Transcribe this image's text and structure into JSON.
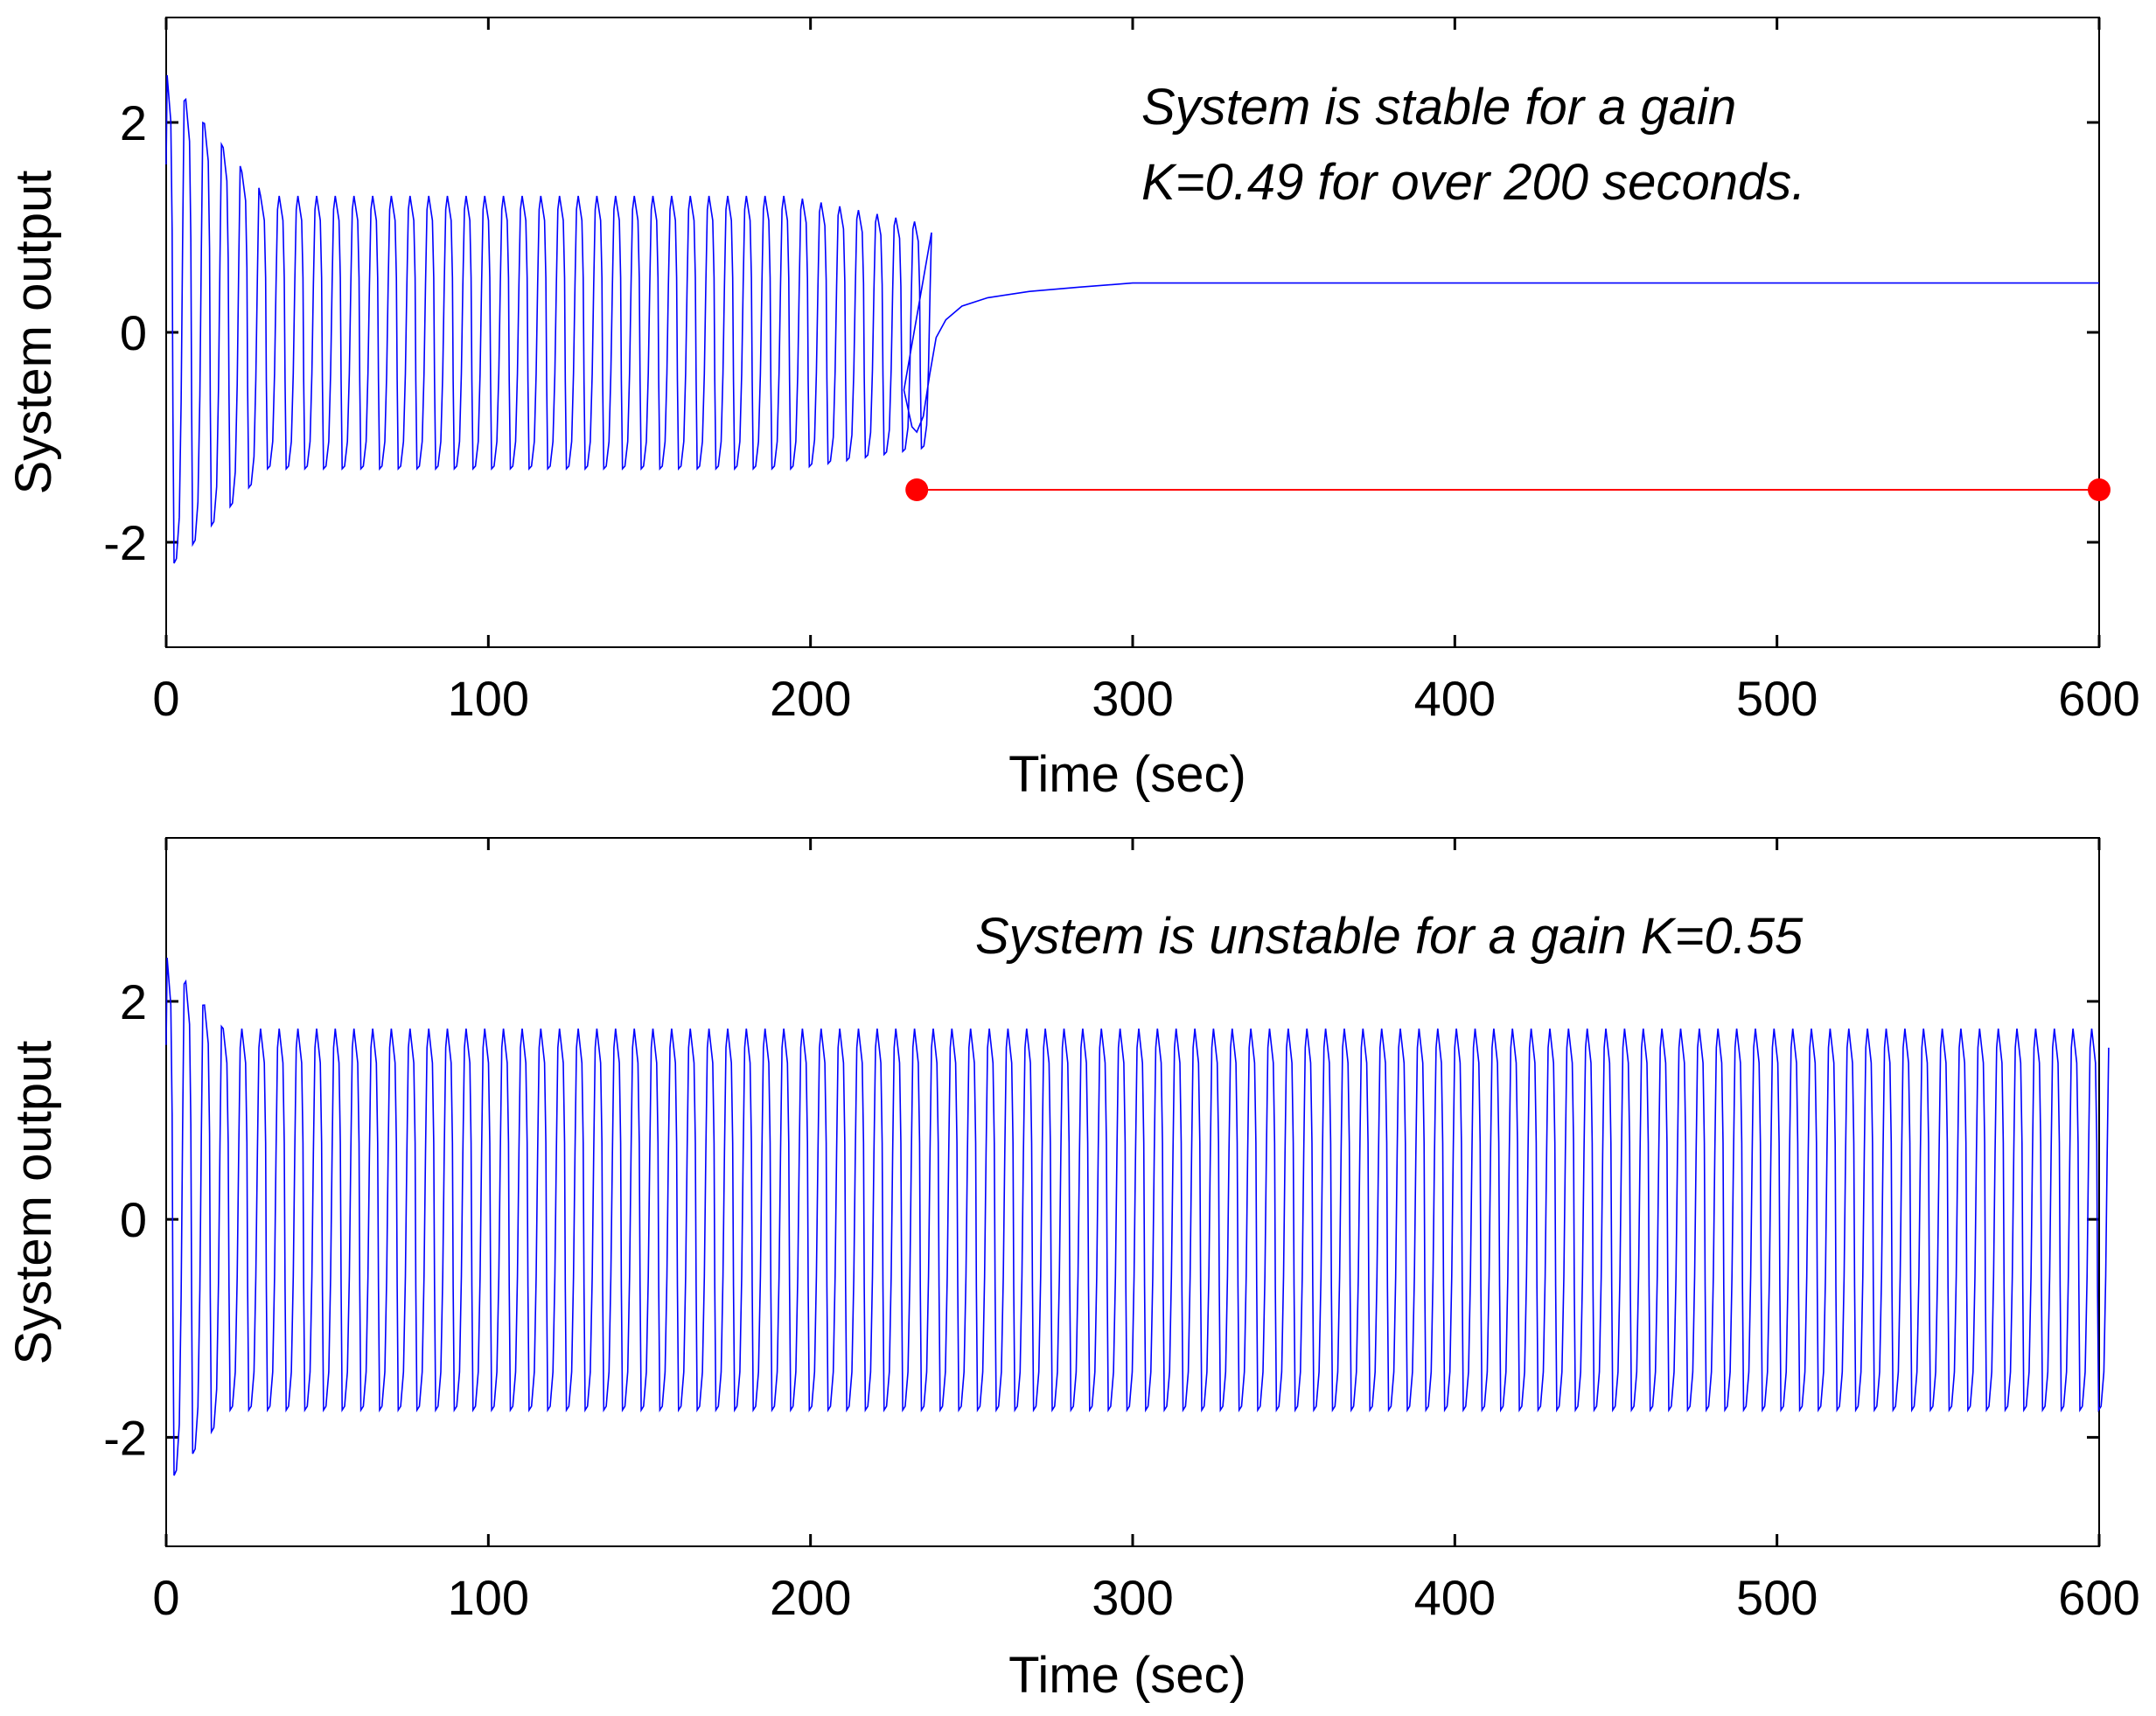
{
  "chart_data": [
    {
      "type": "line",
      "id": "top",
      "xlabel": "Time (sec)",
      "ylabel": "System output",
      "xlim": [
        0,
        600
      ],
      "ylim": [
        -3,
        3
      ],
      "xticks": [
        0,
        100,
        200,
        300,
        400,
        500,
        600
      ],
      "yticks": [
        -2,
        0,
        2
      ],
      "annotation_lines": [
        "System is stable for a gain",
        "K=0.49 for over 200 seconds."
      ],
      "series": [
        {
          "name": "System output",
          "color": "#0000ff",
          "kind": "oscillation",
          "params": {
            "start_t": 0,
            "period": 5.8,
            "initial_peak": 2.45,
            "initial_trough": -2.2,
            "sustained_peak": 1.3,
            "sustained_trough": -1.3,
            "decay_cycles": 5,
            "pre_switch_peak": 1.05,
            "pre_switch_trough": -1.1,
            "switch_t": 233,
            "switch_min": -0.95,
            "settle_value": 0.47,
            "settle_t": 300
          }
        },
        {
          "name": "Interval marker",
          "color": "#ff0000",
          "kind": "segment",
          "x": [
            233,
            600
          ],
          "y": [
            -1.5,
            -1.5
          ]
        }
      ]
    },
    {
      "type": "line",
      "id": "bottom",
      "xlabel": "Time (sec)",
      "ylabel": "System output",
      "xlim": [
        0,
        600
      ],
      "ylim": [
        -3,
        3.5
      ],
      "xticks": [
        0,
        100,
        200,
        300,
        400,
        500,
        600
      ],
      "yticks": [
        -2,
        0,
        2
      ],
      "annotation_lines": [
        "System is unstable for a gain K=0.55"
      ],
      "series": [
        {
          "name": "System output",
          "color": "#0000ff",
          "kind": "oscillation",
          "params": {
            "start_t": 0,
            "period": 5.8,
            "initial_peak": 2.4,
            "initial_trough": -2.35,
            "sustained_peak": 1.75,
            "sustained_trough": -1.75,
            "decay_cycles": 3,
            "switch_t": null
          }
        }
      ]
    }
  ]
}
